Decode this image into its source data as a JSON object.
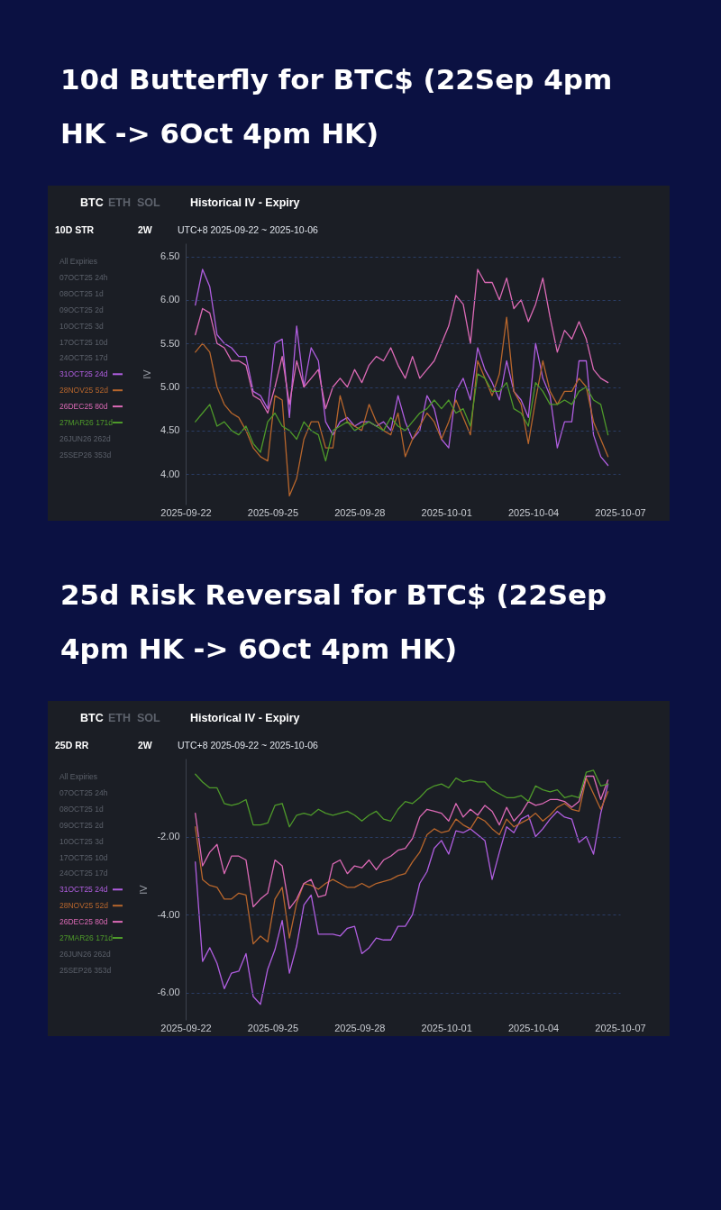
{
  "chart_data": [
    {
      "type": "line",
      "title": "10d Butterfly for BTC$ (22Sep 4pm HK -> 6Oct 4pm HK)",
      "ylabel": "IV",
      "annotations": [
        "BTC",
        "ETH",
        "SOL",
        "Historical IV - Expiry",
        "10D STR",
        "2W",
        "UTC+8 2025-09-22 ~ 2025-10-06",
        "All Expiries",
        "07OCT25 24h",
        "08OCT25 1d",
        "09OCT25 2d",
        "10OCT25 3d",
        "17OCT25 10d",
        "24OCT25 17d",
        "26JUN26 262d",
        "25SEP26 353d"
      ],
      "x": [
        "2025-09-22T08:00",
        "2025-09-22T14:00",
        "2025-09-22T20:00",
        "2025-09-23T02:00",
        "2025-09-23T08:00",
        "2025-09-23T14:00",
        "2025-09-23T20:00",
        "2025-09-24T02:00",
        "2025-09-24T08:00",
        "2025-09-24T14:00",
        "2025-09-24T20:00",
        "2025-09-25T02:00",
        "2025-09-25T08:00",
        "2025-09-25T14:00",
        "2025-09-25T20:00",
        "2025-09-26T02:00",
        "2025-09-26T08:00",
        "2025-09-26T14:00",
        "2025-09-26T20:00",
        "2025-09-27T02:00",
        "2025-09-27T08:00",
        "2025-09-27T14:00",
        "2025-09-27T20:00",
        "2025-09-28T02:00",
        "2025-09-28T08:00",
        "2025-09-28T14:00",
        "2025-09-28T20:00",
        "2025-09-29T02:00",
        "2025-09-29T08:00",
        "2025-09-29T14:00",
        "2025-09-29T20:00",
        "2025-09-30T02:00",
        "2025-09-30T08:00",
        "2025-09-30T14:00",
        "2025-09-30T20:00",
        "2025-10-01T02:00",
        "2025-10-01T08:00",
        "2025-10-01T14:00",
        "2025-10-01T20:00",
        "2025-10-02T02:00",
        "2025-10-02T08:00",
        "2025-10-02T14:00",
        "2025-10-02T20:00",
        "2025-10-03T02:00",
        "2025-10-03T08:00",
        "2025-10-03T14:00",
        "2025-10-03T20:00",
        "2025-10-04T02:00",
        "2025-10-04T08:00",
        "2025-10-04T14:00",
        "2025-10-04T20:00",
        "2025-10-05T02:00",
        "2025-10-05T08:00",
        "2025-10-05T14:00",
        "2025-10-05T20:00",
        "2025-10-06T02:00",
        "2025-10-06T08:00",
        "2025-10-06T14:00"
      ],
      "series": [
        {
          "name": "31OCT25 24d",
          "color": "#b05ee0",
          "values": [
            5.94,
            6.35,
            6.15,
            5.6,
            5.5,
            5.45,
            5.35,
            5.35,
            4.95,
            4.9,
            4.75,
            5.5,
            5.55,
            4.65,
            5.7,
            5.0,
            5.45,
            5.3,
            4.6,
            4.45,
            4.6,
            4.65,
            4.55,
            4.6,
            4.6,
            4.55,
            4.6,
            4.5,
            4.9,
            4.6,
            4.4,
            4.5,
            4.9,
            4.75,
            4.4,
            4.3,
            4.95,
            5.1,
            4.85,
            5.45,
            5.2,
            5.05,
            4.85,
            5.3,
            4.95,
            4.85,
            4.65,
            5.5,
            5.1,
            4.9,
            4.3,
            4.6,
            4.6,
            5.3,
            5.3,
            4.45,
            4.2,
            4.1
          ]
        },
        {
          "name": "28NOV25 52d",
          "color": "#b8662c",
          "values": [
            5.4,
            5.5,
            5.4,
            5.0,
            4.8,
            4.7,
            4.65,
            4.5,
            4.3,
            4.2,
            4.15,
            4.9,
            4.85,
            3.75,
            3.95,
            4.4,
            4.6,
            4.6,
            4.3,
            4.3,
            4.9,
            4.6,
            4.55,
            4.5,
            4.8,
            4.6,
            4.5,
            4.45,
            4.7,
            4.2,
            4.4,
            4.55,
            4.7,
            4.6,
            4.4,
            4.6,
            4.85,
            4.65,
            4.45,
            5.3,
            5.1,
            4.9,
            5.15,
            5.8,
            4.95,
            4.8,
            4.35,
            4.85,
            5.3,
            4.95,
            4.8,
            4.95,
            4.95,
            5.1,
            5.0,
            4.6,
            4.4,
            4.2
          ]
        },
        {
          "name": "26DEC25 80d",
          "color": "#dc6ab6",
          "values": [
            5.6,
            5.9,
            5.85,
            5.5,
            5.45,
            5.3,
            5.3,
            5.25,
            4.9,
            4.85,
            4.7,
            5.0,
            5.35,
            4.8,
            5.3,
            5.0,
            5.1,
            5.2,
            4.75,
            5.0,
            5.1,
            5.0,
            5.2,
            5.05,
            5.25,
            5.35,
            5.3,
            5.45,
            5.25,
            5.1,
            5.35,
            5.1,
            5.2,
            5.3,
            5.5,
            5.7,
            6.05,
            5.95,
            5.5,
            6.35,
            6.2,
            6.2,
            6.0,
            6.25,
            5.9,
            6.0,
            5.75,
            5.95,
            6.25,
            5.8,
            5.4,
            5.65,
            5.55,
            5.75,
            5.55,
            5.2,
            5.1,
            5.05
          ]
        },
        {
          "name": "27MAR26 171d",
          "color": "#4e9a2a",
          "values": [
            4.6,
            4.7,
            4.8,
            4.55,
            4.6,
            4.5,
            4.45,
            4.55,
            4.35,
            4.25,
            4.6,
            4.7,
            4.55,
            4.5,
            4.4,
            4.6,
            4.5,
            4.45,
            4.15,
            4.5,
            4.55,
            4.6,
            4.5,
            4.55,
            4.6,
            4.55,
            4.5,
            4.65,
            4.55,
            4.5,
            4.6,
            4.7,
            4.75,
            4.85,
            4.75,
            4.85,
            4.7,
            4.75,
            4.55,
            5.15,
            5.1,
            4.95,
            4.95,
            5.05,
            4.75,
            4.7,
            4.55,
            5.05,
            4.95,
            4.8,
            4.8,
            4.85,
            4.8,
            4.95,
            5.0,
            4.85,
            4.8,
            4.45
          ]
        }
      ],
      "xlim": [
        "2025-09-22",
        "2025-10-07"
      ],
      "xticks": [
        "2025-09-22",
        "2025-09-25",
        "2025-09-28",
        "2025-10-01",
        "2025-10-04",
        "2025-10-07"
      ],
      "ylim": [
        3.65,
        6.65
      ],
      "yticks": [
        {
          "value": 4,
          "label": "4.00"
        },
        {
          "value": 4.5,
          "label": "4.50"
        },
        {
          "value": 5,
          "label": "5.00"
        },
        {
          "value": 5.5,
          "label": "5.50"
        },
        {
          "value": 6,
          "label": "6.00"
        },
        {
          "value": 6.5,
          "label": "6.50"
        }
      ],
      "grid": "y",
      "legend": "left"
    },
    {
      "type": "line",
      "title": "25d Risk Reversal for BTC$ (22Sep 4pm HK -> 6Oct 4pm HK)",
      "ylabel": "IV",
      "annotations": [
        "BTC",
        "ETH",
        "SOL",
        "Historical IV - Expiry",
        "25D RR",
        "2W",
        "UTC+8 2025-09-22 ~ 2025-10-06",
        "All Expiries",
        "07OCT25 24h",
        "08OCT25 1d",
        "09OCT25 2d",
        "10OCT25 3d",
        "17OCT25 10d",
        "24OCT25 17d",
        "26JUN26 262d",
        "25SEP26 353d"
      ],
      "x": [
        "2025-09-22T08:00",
        "2025-09-22T14:00",
        "2025-09-22T20:00",
        "2025-09-23T02:00",
        "2025-09-23T08:00",
        "2025-09-23T14:00",
        "2025-09-23T20:00",
        "2025-09-24T02:00",
        "2025-09-24T08:00",
        "2025-09-24T14:00",
        "2025-09-24T20:00",
        "2025-09-25T02:00",
        "2025-09-25T08:00",
        "2025-09-25T14:00",
        "2025-09-25T20:00",
        "2025-09-26T02:00",
        "2025-09-26T08:00",
        "2025-09-26T14:00",
        "2025-09-26T20:00",
        "2025-09-27T02:00",
        "2025-09-27T08:00",
        "2025-09-27T14:00",
        "2025-09-27T20:00",
        "2025-09-28T02:00",
        "2025-09-28T08:00",
        "2025-09-28T14:00",
        "2025-09-28T20:00",
        "2025-09-29T02:00",
        "2025-09-29T08:00",
        "2025-09-29T14:00",
        "2025-09-29T20:00",
        "2025-09-30T02:00",
        "2025-09-30T08:00",
        "2025-09-30T14:00",
        "2025-09-30T20:00",
        "2025-10-01T02:00",
        "2025-10-01T08:00",
        "2025-10-01T14:00",
        "2025-10-01T20:00",
        "2025-10-02T02:00",
        "2025-10-02T08:00",
        "2025-10-02T14:00",
        "2025-10-02T20:00",
        "2025-10-03T02:00",
        "2025-10-03T08:00",
        "2025-10-03T14:00",
        "2025-10-03T20:00",
        "2025-10-04T02:00",
        "2025-10-04T08:00",
        "2025-10-04T14:00",
        "2025-10-04T20:00",
        "2025-10-05T02:00",
        "2025-10-05T08:00",
        "2025-10-05T14:00",
        "2025-10-05T20:00",
        "2025-10-06T02:00",
        "2025-10-06T08:00",
        "2025-10-06T14:00"
      ],
      "series": [
        {
          "name": "31OCT25 24d",
          "color": "#b05ee0",
          "values": [
            -2.65,
            -5.2,
            -4.85,
            -5.25,
            -5.9,
            -5.5,
            -5.45,
            -5.0,
            -6.1,
            -6.3,
            -5.4,
            -4.9,
            -4.15,
            -5.5,
            -4.8,
            -3.75,
            -3.5,
            -4.5,
            -4.5,
            -4.5,
            -4.55,
            -4.35,
            -4.3,
            -5.0,
            -4.85,
            -4.6,
            -4.65,
            -4.65,
            -4.3,
            -4.3,
            -4.0,
            -3.2,
            -2.9,
            -2.3,
            -2.1,
            -2.45,
            -1.85,
            -1.9,
            -1.8,
            -1.95,
            -2.1,
            -3.1,
            -2.4,
            -1.75,
            -1.9,
            -1.55,
            -1.45,
            -2.0,
            -1.8,
            -1.55,
            -1.35,
            -1.5,
            -1.55,
            -2.15,
            -2.0,
            -2.45,
            -1.4,
            -0.65
          ]
        },
        {
          "name": "28NOV25 52d",
          "color": "#b8662c",
          "values": [
            -1.75,
            -3.1,
            -3.25,
            -3.3,
            -3.6,
            -3.6,
            -3.45,
            -3.5,
            -4.75,
            -4.55,
            -4.7,
            -3.6,
            -3.3,
            -4.6,
            -3.7,
            -3.2,
            -3.25,
            -3.35,
            -3.2,
            -3.1,
            -3.2,
            -3.3,
            -3.3,
            -3.2,
            -3.3,
            -3.2,
            -3.15,
            -3.1,
            -3.0,
            -2.95,
            -2.65,
            -2.4,
            -1.95,
            -1.8,
            -1.9,
            -1.85,
            -1.55,
            -1.7,
            -1.8,
            -1.5,
            -1.6,
            -1.8,
            -1.95,
            -1.55,
            -1.75,
            -1.65,
            -1.55,
            -1.4,
            -1.6,
            -1.45,
            -1.25,
            -1.15,
            -1.3,
            -1.35,
            -0.5,
            -0.9,
            -1.3,
            -0.85
          ]
        },
        {
          "name": "26DEC25 80d",
          "color": "#dc6ab6",
          "values": [
            -1.4,
            -2.75,
            -2.4,
            -2.2,
            -2.95,
            -2.5,
            -2.5,
            -2.6,
            -3.8,
            -3.6,
            -3.45,
            -2.6,
            -2.75,
            -3.85,
            -3.6,
            -3.2,
            -3.1,
            -3.55,
            -3.5,
            -2.7,
            -2.6,
            -2.95,
            -2.75,
            -2.8,
            -2.6,
            -2.85,
            -2.6,
            -2.5,
            -2.35,
            -2.3,
            -2.05,
            -1.5,
            -1.3,
            -1.35,
            -1.4,
            -1.6,
            -1.15,
            -1.5,
            -1.3,
            -1.45,
            -1.2,
            -1.35,
            -1.7,
            -1.25,
            -1.6,
            -1.4,
            -1.1,
            -1.2,
            -1.15,
            -1.05,
            -1.05,
            -1.1,
            -1.25,
            -1.1,
            -0.45,
            -0.45,
            -1.05,
            -0.55
          ]
        },
        {
          "name": "27MAR26 171d",
          "color": "#4e9a2a",
          "values": [
            -0.4,
            -0.6,
            -0.75,
            -0.75,
            -1.15,
            -1.2,
            -1.15,
            -1.05,
            -1.7,
            -1.7,
            -1.65,
            -1.2,
            -1.15,
            -1.75,
            -1.45,
            -1.4,
            -1.45,
            -1.3,
            -1.4,
            -1.45,
            -1.4,
            -1.35,
            -1.45,
            -1.6,
            -1.45,
            -1.35,
            -1.55,
            -1.6,
            -1.3,
            -1.1,
            -1.15,
            -1.0,
            -0.8,
            -0.7,
            -0.65,
            -0.75,
            -0.5,
            -0.6,
            -0.55,
            -0.6,
            -0.6,
            -0.8,
            -0.9,
            -1.0,
            -1.0,
            -0.95,
            -1.1,
            -0.7,
            -0.8,
            -0.85,
            -0.8,
            -1.0,
            -0.95,
            -1.0,
            -0.35,
            -0.3,
            -0.7,
            -0.65
          ]
        }
      ],
      "xlim": [
        "2025-09-22",
        "2025-10-07"
      ],
      "xticks": [
        "2025-09-22",
        "2025-09-25",
        "2025-09-28",
        "2025-10-01",
        "2025-10-04",
        "2025-10-07"
      ],
      "ylim": [
        -6.7,
        0
      ],
      "yticks": [
        {
          "value": -6,
          "label": "-6.00"
        },
        {
          "value": -4,
          "label": "-4.00"
        },
        {
          "value": -2,
          "label": "-2.00"
        }
      ],
      "grid": "y",
      "legend": "left"
    }
  ]
}
